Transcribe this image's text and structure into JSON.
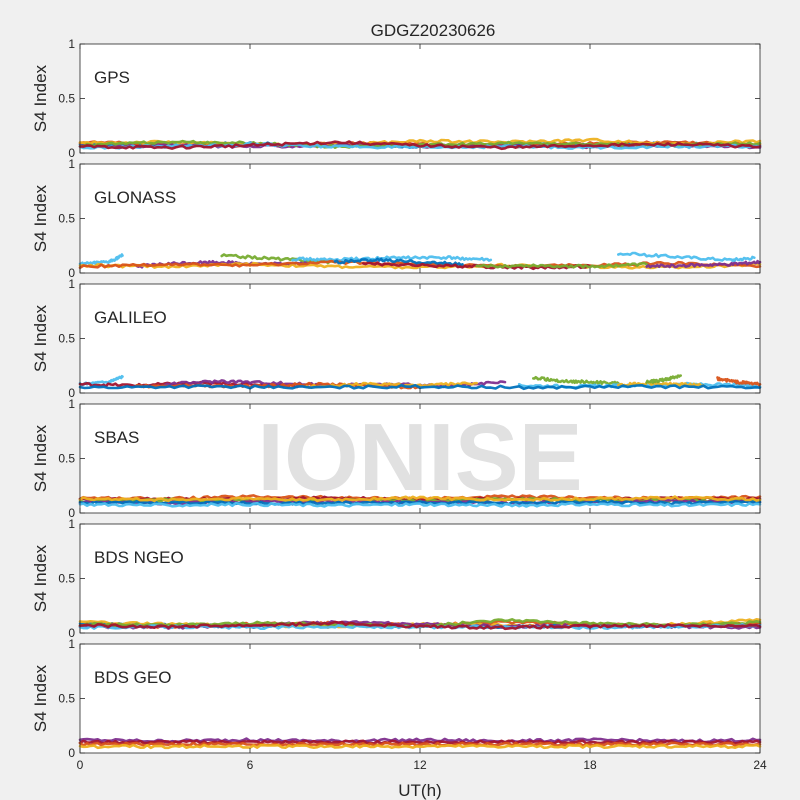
{
  "chart_data": {
    "type": "scatter",
    "title": "GDGZ20230626",
    "xlabel": "UT(h)",
    "ylabel": "S4 Index",
    "xlim": [
      0,
      24
    ],
    "ylim": [
      0,
      1
    ],
    "xticks": [
      "0",
      "6",
      "12",
      "18",
      "24"
    ],
    "yticks": [
      "0",
      "0.5",
      "1"
    ],
    "watermark": "IONISE",
    "series_colors": [
      "#0072BD",
      "#D95319",
      "#EDB120",
      "#7E2F8E",
      "#77AC30",
      "#4DBEEE",
      "#A2142F"
    ],
    "panels": [
      {
        "label": "GPS",
        "tracks": [
          {
            "color": "#0072BD",
            "x": [
              0.0,
              3.0,
              6.0,
              9.0,
              12.0,
              15.0,
              18.0,
              21.0,
              24.0
            ],
            "y": [
              0.08,
              0.07,
              0.09,
              0.07,
              0.06,
              0.08,
              0.07,
              0.09,
              0.07
            ]
          },
          {
            "color": "#D95319",
            "x": [
              0.0,
              3.0,
              6.0,
              9.0,
              12.0,
              15.0,
              18.0,
              21.0,
              24.0
            ],
            "y": [
              0.1,
              0.08,
              0.07,
              0.09,
              0.08,
              0.06,
              0.09,
              0.1,
              0.08
            ]
          },
          {
            "color": "#EDB120",
            "x": [
              0.0,
              3.0,
              6.0,
              9.0,
              12.0,
              15.0,
              18.0,
              21.0,
              24.0
            ],
            "y": [
              0.09,
              0.1,
              0.08,
              0.08,
              0.11,
              0.1,
              0.12,
              0.08,
              0.11
            ]
          },
          {
            "color": "#7E2F8E",
            "x": [
              0.0,
              3.0,
              6.0,
              9.0,
              12.0,
              15.0,
              18.0,
              21.0,
              24.0
            ],
            "y": [
              0.06,
              0.07,
              0.06,
              0.07,
              0.06,
              0.07,
              0.06,
              0.07,
              0.05
            ]
          },
          {
            "color": "#77AC30",
            "x": [
              0.0,
              3.0,
              6.0,
              9.0,
              12.0,
              15.0,
              18.0,
              21.0,
              24.0
            ],
            "y": [
              0.07,
              0.1,
              0.09,
              0.06,
              0.07,
              0.09,
              0.08,
              0.07,
              0.09
            ]
          },
          {
            "color": "#4DBEEE",
            "x": [
              0.0,
              3.0,
              6.0,
              9.0,
              12.0,
              15.0,
              18.0,
              21.0,
              24.0
            ],
            "y": [
              0.05,
              0.06,
              0.08,
              0.06,
              0.05,
              0.06,
              0.05,
              0.06,
              0.06
            ]
          },
          {
            "color": "#A2142F",
            "x": [
              0.0,
              3.0,
              6.0,
              9.0,
              12.0,
              15.0,
              18.0,
              21.0,
              24.0
            ],
            "y": [
              0.06,
              0.05,
              0.07,
              0.1,
              0.07,
              0.05,
              0.07,
              0.08,
              0.06
            ]
          }
        ]
      },
      {
        "label": "GLONASS",
        "tracks": [
          {
            "color": "#4DBEEE",
            "x": [
              0.0,
              1.0,
              1.5
            ],
            "y": [
              0.08,
              0.1,
              0.16
            ]
          },
          {
            "color": "#77AC30",
            "x": [
              5.0,
              7.0,
              9.0
            ],
            "y": [
              0.16,
              0.13,
              0.1
            ]
          },
          {
            "color": "#4DBEEE",
            "x": [
              7.5,
              9.0,
              11.0,
              13.0,
              14.5
            ],
            "y": [
              0.13,
              0.12,
              0.14,
              0.14,
              0.12
            ]
          },
          {
            "color": "#7E2F8E",
            "x": [
              2.0,
              3.5,
              5.0,
              6.5,
              8.0
            ],
            "y": [
              0.06,
              0.09,
              0.1,
              0.08,
              0.09
            ]
          },
          {
            "color": "#EDB120",
            "x": [
              0.0,
              3.0,
              6.0,
              9.0,
              12.0,
              15.0,
              18.0,
              21.0,
              24.0
            ],
            "y": [
              0.07,
              0.06,
              0.08,
              0.06,
              0.05,
              0.07,
              0.06,
              0.05,
              0.08
            ]
          },
          {
            "color": "#D95319",
            "x": [
              0.0,
              3.0,
              6.0,
              9.0,
              12.0,
              15.0,
              18.0,
              21.0,
              24.0
            ],
            "y": [
              0.06,
              0.08,
              0.07,
              0.1,
              0.08,
              0.06,
              0.07,
              0.09,
              0.06
            ]
          },
          {
            "color": "#0072BD",
            "x": [
              9.0,
              10.5,
              12.0,
              13.5
            ],
            "y": [
              0.1,
              0.12,
              0.1,
              0.08
            ]
          },
          {
            "color": "#A2142F",
            "x": [
              10.0,
              12.0,
              14.0,
              16.0,
              18.0
            ],
            "y": [
              0.09,
              0.07,
              0.06,
              0.05,
              0.06
            ]
          },
          {
            "color": "#4DBEEE",
            "x": [
              19.0,
              21.0,
              23.0,
              23.8
            ],
            "y": [
              0.18,
              0.15,
              0.12,
              0.14
            ]
          },
          {
            "color": "#77AC30",
            "x": [
              14.0,
              16.0,
              18.0,
              20.0
            ],
            "y": [
              0.06,
              0.07,
              0.06,
              0.08
            ]
          },
          {
            "color": "#7E2F8E",
            "x": [
              20.0,
              21.5,
              23.0,
              24.0
            ],
            "y": [
              0.06,
              0.07,
              0.08,
              0.1
            ]
          }
        ]
      },
      {
        "label": "GALILEO",
        "tracks": [
          {
            "color": "#4DBEEE",
            "x": [
              0.0,
              1.0,
              1.5
            ],
            "y": [
              0.08,
              0.1,
              0.15
            ]
          },
          {
            "color": "#A2142F",
            "x": [
              0.0,
              2.0,
              4.0,
              6.0,
              8.0
            ],
            "y": [
              0.08,
              0.07,
              0.09,
              0.08,
              0.06
            ]
          },
          {
            "color": "#7E2F8E",
            "x": [
              3.0,
              5.0,
              7.0,
              9.0,
              11.0,
              13.0,
              15.0
            ],
            "y": [
              0.08,
              0.11,
              0.09,
              0.07,
              0.08,
              0.06,
              0.1
            ]
          },
          {
            "color": "#D95319",
            "x": [
              2.0,
              4.0,
              6.0,
              8.0,
              10.0,
              12.0
            ],
            "y": [
              0.06,
              0.07,
              0.06,
              0.08,
              0.07,
              0.05
            ]
          },
          {
            "color": "#EDB120",
            "x": [
              8.0,
              10.0,
              12.0,
              14.0
            ],
            "y": [
              0.06,
              0.08,
              0.07,
              0.09
            ]
          },
          {
            "color": "#77AC30",
            "x": [
              16.0,
              17.0,
              18.0,
              19.0
            ],
            "y": [
              0.14,
              0.11,
              0.1,
              0.09
            ]
          },
          {
            "color": "#4DBEEE",
            "x": [
              15.5,
              17.5,
              19.5,
              21.5,
              23.5,
              24.0
            ],
            "y": [
              0.07,
              0.06,
              0.07,
              0.08,
              0.07,
              0.06
            ]
          },
          {
            "color": "#EDB120",
            "x": [
              19.0,
              20.0,
              21.0,
              22.0
            ],
            "y": [
              0.07,
              0.09,
              0.08,
              0.07
            ]
          },
          {
            "color": "#77AC30",
            "x": [
              20.0,
              20.6,
              21.2
            ],
            "y": [
              0.1,
              0.12,
              0.16
            ]
          },
          {
            "color": "#D95319",
            "x": [
              22.5,
              23.2,
              24.0
            ],
            "y": [
              0.13,
              0.1,
              0.08
            ]
          },
          {
            "color": "#0072BD",
            "x": [
              0.0,
              4.0,
              8.0,
              12.0,
              16.0,
              20.0,
              24.0
            ],
            "y": [
              0.05,
              0.06,
              0.05,
              0.06,
              0.05,
              0.06,
              0.05
            ]
          }
        ]
      },
      {
        "label": "SBAS",
        "tracks": [
          {
            "color": "#D95319",
            "x": [
              0.0,
              3.0,
              6.0,
              9.0,
              12.0,
              15.0,
              18.0,
              21.0,
              24.0
            ],
            "y": [
              0.14,
              0.13,
              0.15,
              0.14,
              0.13,
              0.15,
              0.14,
              0.13,
              0.15
            ]
          },
          {
            "color": "#A2142F",
            "x": [
              0.0,
              3.0,
              6.0,
              9.0,
              12.0,
              15.0,
              18.0,
              21.0,
              24.0
            ],
            "y": [
              0.12,
              0.13,
              0.12,
              0.14,
              0.12,
              0.13,
              0.12,
              0.14,
              0.13
            ]
          },
          {
            "color": "#77AC30",
            "x": [
              0.0,
              3.0,
              6.0,
              9.0,
              12.0,
              15.0,
              18.0,
              21.0,
              24.0
            ],
            "y": [
              0.11,
              0.12,
              0.11,
              0.12,
              0.11,
              0.13,
              0.12,
              0.11,
              0.12
            ]
          },
          {
            "color": "#7E2F8E",
            "x": [
              0.0,
              3.0,
              6.0,
              9.0,
              12.0,
              15.0,
              18.0,
              21.0,
              24.0
            ],
            "y": [
              0.1,
              0.09,
              0.1,
              0.11,
              0.1,
              0.09,
              0.1,
              0.11,
              0.1
            ]
          },
          {
            "color": "#0072BD",
            "x": [
              0.0,
              3.0,
              6.0,
              9.0,
              12.0,
              15.0,
              18.0,
              21.0,
              24.0
            ],
            "y": [
              0.09,
              0.1,
              0.09,
              0.09,
              0.1,
              0.09,
              0.1,
              0.09,
              0.1
            ]
          },
          {
            "color": "#4DBEEE",
            "x": [
              0.0,
              3.0,
              6.0,
              9.0,
              12.0,
              15.0,
              18.0,
              21.0,
              24.0
            ],
            "y": [
              0.08,
              0.07,
              0.08,
              0.07,
              0.08,
              0.07,
              0.08,
              0.07,
              0.08
            ]
          },
          {
            "color": "#EDB120",
            "x": [
              0.0,
              3.0,
              6.0,
              9.0,
              12.0,
              15.0,
              18.0,
              21.0,
              24.0
            ],
            "y": [
              0.13,
              0.12,
              0.13,
              0.12,
              0.14,
              0.12,
              0.13,
              0.14,
              0.12
            ]
          }
        ]
      },
      {
        "label": "BDS NGEO",
        "tracks": [
          {
            "color": "#0072BD",
            "x": [
              0.0,
              3.0,
              6.0,
              9.0,
              12.0,
              15.0,
              18.0,
              21.0,
              24.0
            ],
            "y": [
              0.09,
              0.07,
              0.06,
              0.08,
              0.07,
              0.06,
              0.07,
              0.06,
              0.08
            ]
          },
          {
            "color": "#D95319",
            "x": [
              0.0,
              3.0,
              6.0,
              9.0,
              12.0,
              15.0,
              18.0,
              21.0,
              24.0
            ],
            "y": [
              0.07,
              0.06,
              0.08,
              0.09,
              0.07,
              0.1,
              0.08,
              0.07,
              0.09
            ]
          },
          {
            "color": "#EDB120",
            "x": [
              0.0,
              3.0,
              6.0,
              9.0,
              12.0,
              15.0,
              18.0,
              21.0,
              24.0
            ],
            "y": [
              0.1,
              0.08,
              0.07,
              0.06,
              0.08,
              0.07,
              0.06,
              0.08,
              0.12
            ]
          },
          {
            "color": "#7E2F8E",
            "x": [
              0.0,
              3.0,
              6.0,
              9.0,
              12.0,
              15.0,
              18.0,
              21.0,
              24.0
            ],
            "y": [
              0.06,
              0.05,
              0.07,
              0.1,
              0.08,
              0.06,
              0.07,
              0.06,
              0.05
            ]
          },
          {
            "color": "#77AC30",
            "x": [
              0.0,
              3.0,
              6.0,
              9.0,
              12.0,
              15.0,
              18.0,
              21.0,
              24.0
            ],
            "y": [
              0.08,
              0.07,
              0.09,
              0.08,
              0.06,
              0.12,
              0.09,
              0.07,
              0.1
            ]
          },
          {
            "color": "#4DBEEE",
            "x": [
              0.0,
              3.0,
              6.0,
              9.0,
              12.0,
              15.0,
              18.0,
              21.0,
              24.0
            ],
            "y": [
              0.05,
              0.06,
              0.05,
              0.06,
              0.05,
              0.06,
              0.05,
              0.06,
              0.07
            ]
          },
          {
            "color": "#A2142F",
            "x": [
              0.0,
              3.0,
              6.0,
              9.0,
              12.0,
              15.0,
              18.0,
              21.0,
              24.0
            ],
            "y": [
              0.07,
              0.06,
              0.07,
              0.09,
              0.06,
              0.05,
              0.06,
              0.07,
              0.06
            ]
          }
        ]
      },
      {
        "label": "BDS GEO",
        "tracks": [
          {
            "color": "#7E2F8E",
            "x": [
              0.0,
              3.0,
              6.0,
              9.0,
              12.0,
              15.0,
              18.0,
              21.0,
              24.0
            ],
            "y": [
              0.12,
              0.11,
              0.12,
              0.11,
              0.12,
              0.11,
              0.12,
              0.11,
              0.12
            ]
          },
          {
            "color": "#A2142F",
            "x": [
              0.0,
              3.0,
              6.0,
              9.0,
              12.0,
              15.0,
              18.0,
              21.0,
              24.0
            ],
            "y": [
              0.1,
              0.1,
              0.1,
              0.1,
              0.1,
              0.1,
              0.1,
              0.1,
              0.1
            ]
          },
          {
            "color": "#D95319",
            "x": [
              0.0,
              3.0,
              6.0,
              9.0,
              12.0,
              15.0,
              18.0,
              21.0,
              24.0
            ],
            "y": [
              0.08,
              0.08,
              0.08,
              0.08,
              0.08,
              0.08,
              0.08,
              0.08,
              0.08
            ]
          },
          {
            "color": "#EDB120",
            "x": [
              0.0,
              3.0,
              6.0,
              9.0,
              12.0,
              15.0,
              18.0,
              21.0,
              24.0
            ],
            "y": [
              0.06,
              0.06,
              0.06,
              0.06,
              0.06,
              0.06,
              0.06,
              0.06,
              0.06
            ]
          }
        ]
      }
    ]
  }
}
